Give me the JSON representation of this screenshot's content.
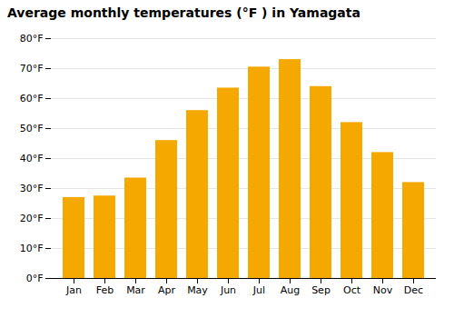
{
  "chart_data": {
    "type": "bar",
    "title": "Average monthly temperatures (°F ) in Yamagata",
    "categories": [
      "Jan",
      "Feb",
      "Mar",
      "Apr",
      "May",
      "Jun",
      "Jul",
      "Aug",
      "Sep",
      "Oct",
      "Nov",
      "Dec"
    ],
    "values": [
      27,
      27.5,
      33.5,
      46,
      56,
      63.5,
      70.5,
      73,
      64,
      52,
      42,
      32
    ],
    "color": "#F5A800",
    "ylim": [
      0,
      80
    ],
    "yticks": [
      {
        "value": 0,
        "label": "0°F"
      },
      {
        "value": 10,
        "label": "10°F"
      },
      {
        "value": 20,
        "label": "20°F"
      },
      {
        "value": 30,
        "label": "30°F"
      },
      {
        "value": 40,
        "label": "40°F"
      },
      {
        "value": 50,
        "label": "50°F"
      },
      {
        "value": 60,
        "label": "60°F"
      },
      {
        "value": 70,
        "label": "70°F"
      },
      {
        "value": 80,
        "label": "80°F"
      }
    ],
    "grid": true
  }
}
